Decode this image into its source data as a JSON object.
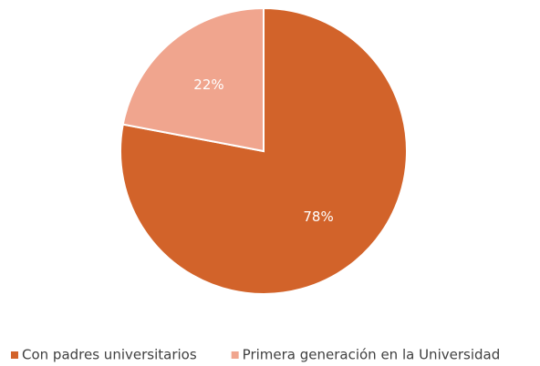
{
  "chart_data": {
    "type": "pie",
    "categories": [
      "Con padres universitarios",
      "Primera generación en la Universidad"
    ],
    "values": [
      78,
      22
    ],
    "value_labels": [
      "78%",
      "22%"
    ],
    "colors": [
      "#d2632a",
      "#f0a58e"
    ],
    "legend": "bottom"
  }
}
